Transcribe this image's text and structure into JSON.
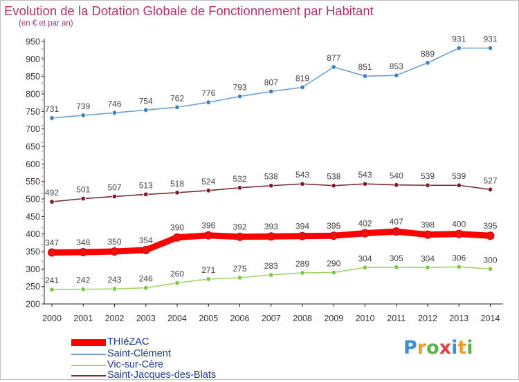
{
  "header": {
    "title": "Evolution de la Dotation Globale de Fonctionnement par Habitant",
    "subtitle": "(en € et par an)"
  },
  "chart_data": {
    "type": "line",
    "title": "Evolution de la Dotation Globale de Fonctionnement par Habitant",
    "subtitle": "(en € et par an)",
    "xlabel": "",
    "ylabel": "",
    "x": [
      "2000",
      "2001",
      "2002",
      "2003",
      "2004",
      "2005",
      "2006",
      "2007",
      "2008",
      "2009",
      "2010",
      "2011",
      "2012",
      "2013",
      "2014"
    ],
    "ylim": [
      200,
      950
    ],
    "yticks": [
      200,
      250,
      300,
      350,
      400,
      450,
      500,
      550,
      600,
      650,
      700,
      750,
      800,
      850,
      900,
      950
    ],
    "grid": false,
    "legend_position": "bottom-left",
    "series": [
      {
        "name": "THIéZAC",
        "color": "#ff0000",
        "marker_color": "#ee1111",
        "values": [
          347,
          348,
          350,
          354,
          390,
          396,
          392,
          393,
          394,
          395,
          402,
          407,
          398,
          400,
          395
        ]
      },
      {
        "name": "Saint-Clément",
        "color": "#6a9fd0",
        "marker_color": "#3f7fc4",
        "values": [
          731,
          739,
          746,
          754,
          762,
          776,
          793,
          807,
          819,
          877,
          851,
          853,
          889,
          931,
          931
        ]
      },
      {
        "name": "Vic-sur-Cère",
        "color": "#9fd66a",
        "marker_color": "#7cc846",
        "values": [
          241,
          242,
          243,
          246,
          260,
          271,
          275,
          283,
          289,
          290,
          304,
          305,
          304,
          306,
          300
        ]
      },
      {
        "name": "Saint-Jacques-des-Blats",
        "color": "#7a2a33",
        "marker_color": "#7a1f2a",
        "values": [
          492,
          501,
          507,
          513,
          518,
          524,
          532,
          538,
          543,
          538,
          543,
          540,
          539,
          539,
          527
        ]
      }
    ]
  },
  "logo": {
    "letters": [
      "P",
      "r",
      "o",
      "x",
      "i",
      "t",
      "i"
    ],
    "colors": [
      "#3a8fd6",
      "#f0a020",
      "#5ab34a",
      "#e04040",
      "#3a8fd6",
      "#f0a020",
      "#5ab34a"
    ]
  }
}
